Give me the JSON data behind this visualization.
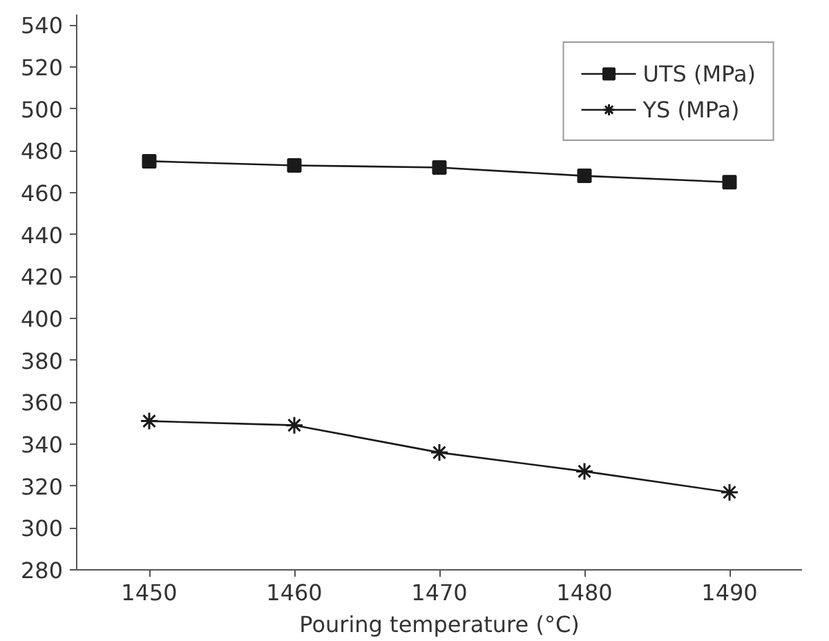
{
  "chart_data": {
    "type": "line",
    "xlabel": "Pouring temperature (°C)",
    "x": [
      1450,
      1460,
      1470,
      1480,
      1490
    ],
    "series": [
      {
        "name": "UTS (MPa)",
        "color": "#1a1a1a",
        "marker": "square",
        "values": [
          475,
          473,
          472,
          468,
          465
        ]
      },
      {
        "name": "YS (MPa)",
        "color": "#1a1a1a",
        "marker": "cross",
        "values": [
          351,
          349,
          336,
          327,
          317
        ]
      }
    ],
    "xlim": [
      1445,
      1495
    ],
    "xticks": [
      1450,
      1460,
      1470,
      1480,
      1490
    ],
    "ylim": [
      280,
      545
    ],
    "yticks": [
      280,
      300,
      320,
      340,
      360,
      380,
      400,
      420,
      440,
      460,
      480,
      500,
      520,
      540
    ],
    "grid": false,
    "legend": "top right",
    "line_style": "solid"
  }
}
